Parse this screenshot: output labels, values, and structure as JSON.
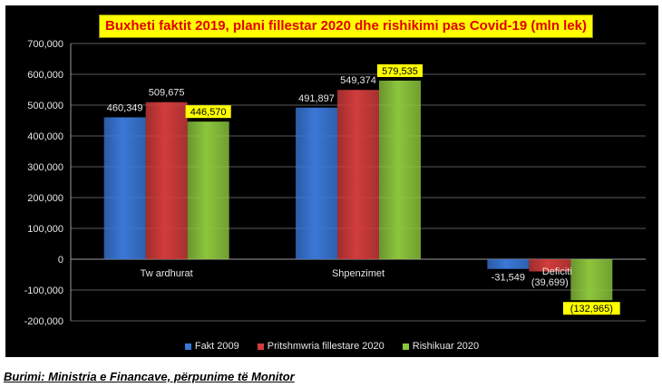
{
  "chart_data": {
    "type": "bar",
    "title": "Buxheti faktit 2019, plani fillestar 2020 dhe rishikimi pas Covid-19 (mln lek)",
    "categories": [
      "Tw ardhurat",
      "Shpenzimet",
      "Deficiti"
    ],
    "series": [
      {
        "name": "Fakt 2009",
        "values": [
          460349,
          491897,
          -31549
        ],
        "labels": [
          "460,349",
          "491,897",
          "-31,549"
        ],
        "color": "#3a78d8"
      },
      {
        "name": "Pritshmwria fillestare 2020",
        "values": [
          509675,
          549374,
          -39699
        ],
        "labels": [
          "509,675",
          "549,374",
          "(39,699)"
        ],
        "color": "#d23c3c"
      },
      {
        "name": "Rishikuar 2020",
        "values": [
          446570,
          579535,
          -132965
        ],
        "labels": [
          "446,570",
          "579,535",
          "(132,965)"
        ],
        "color": "#8cc63c"
      }
    ],
    "highlighted_labels": [
      "446,570",
      "579,535",
      "(132,965)"
    ],
    "ylim": [
      -200000,
      700000
    ],
    "yticks": [
      700000,
      600000,
      500000,
      400000,
      300000,
      200000,
      100000,
      0,
      -100000,
      -200000
    ],
    "ytick_labels": [
      "700,000",
      "600,000",
      "500,000",
      "400,000",
      "300,000",
      "200,000",
      "100,000",
      "0",
      "-100,000",
      "-200,000"
    ],
    "xlabel": "",
    "ylabel": "",
    "grid": true,
    "legend": "bottom"
  },
  "footer": {
    "source": "Burimi: Ministria e Financave, përpunime të Monitor"
  }
}
